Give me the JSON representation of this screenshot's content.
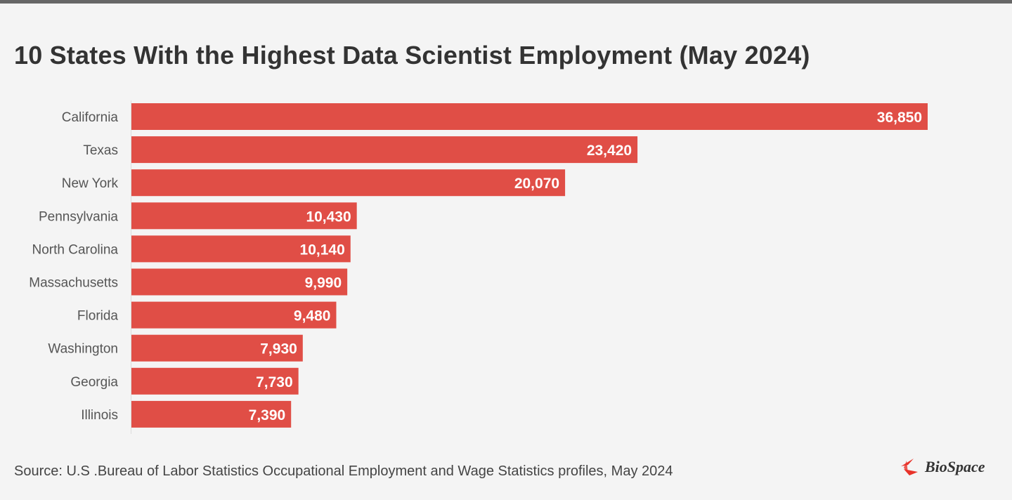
{
  "chart_data": {
    "type": "bar",
    "orientation": "horizontal",
    "title": "10 States With the Highest Data Scientist Employment (May 2024)",
    "categories": [
      "California",
      "Texas",
      "New York",
      "Pennsylvania",
      "North Carolina",
      "Massachusetts",
      "Florida",
      "Washington",
      "Georgia",
      "Illinois"
    ],
    "values": [
      36850,
      23420,
      20070,
      10430,
      10140,
      9990,
      9480,
      7930,
      7730,
      7390
    ],
    "value_labels": [
      "36,850",
      "23,420",
      "20,070",
      "10,430",
      "10,140",
      "9,990",
      "9,480",
      "7,930",
      "7,730",
      "7,390"
    ],
    "xlabel": "",
    "ylabel": "",
    "xlim": [
      0,
      36850
    ],
    "grid": false,
    "bar_color": "#e04e46"
  },
  "source": "Source: U.S .Bureau of Labor Statistics Occupational Employment and Wage Statistics profiles, May 2024",
  "logo": "BioSpace"
}
